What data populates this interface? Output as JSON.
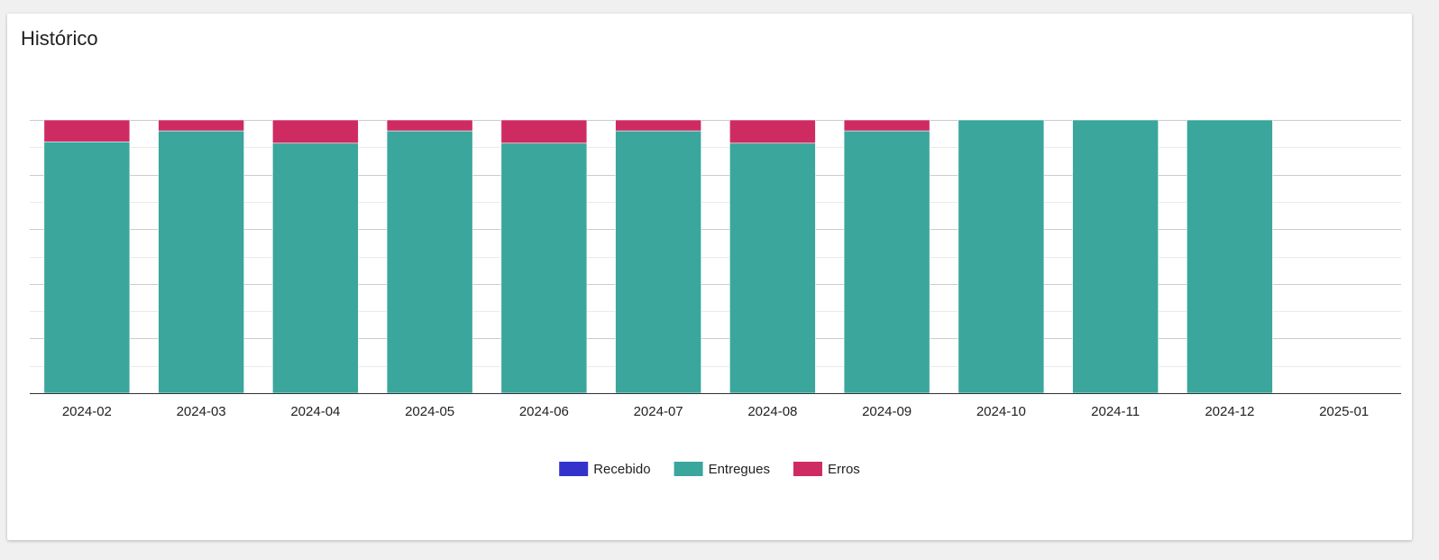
{
  "card": {
    "title": "Histórico"
  },
  "colors": {
    "recebido": "#3333cc",
    "entregues": "#3aa69c",
    "erros": "#cf2b63",
    "gridline": "#cccccc",
    "minor_gridline": "#ebebeb",
    "baseline": "#333333"
  },
  "chart_data": {
    "type": "bar",
    "stacked": true,
    "title": "",
    "xlabel": "",
    "ylabel": "",
    "ylim": [
      0,
      100
    ],
    "grid": true,
    "y_tick_labels_visible": false,
    "legend_position": "bottom",
    "categories": [
      "2024-02",
      "2024-03",
      "2024-04",
      "2024-05",
      "2024-06",
      "2024-07",
      "2024-08",
      "2024-09",
      "2024-10",
      "2024-11",
      "2024-12",
      "2025-01"
    ],
    "series": [
      {
        "name": "Recebido",
        "color_key": "recebido",
        "values": [
          0,
          0,
          0,
          0,
          0,
          0,
          0,
          0,
          0,
          0,
          0,
          0
        ]
      },
      {
        "name": "Entregues",
        "color_key": "entregues",
        "values": [
          92,
          96,
          91.5,
          96,
          91.5,
          96,
          91.5,
          96,
          100,
          100,
          100,
          0
        ]
      },
      {
        "name": "Erros",
        "color_key": "erros",
        "values": [
          8,
          4,
          8.5,
          4,
          8.5,
          4,
          8.5,
          4,
          0,
          0,
          0,
          0
        ]
      }
    ]
  }
}
